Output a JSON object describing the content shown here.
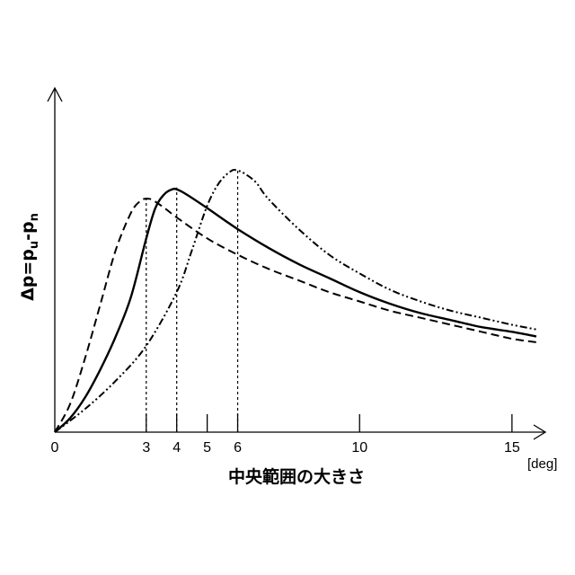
{
  "chart_data": {
    "type": "line",
    "xlabel": "中央範囲の大きさ",
    "ylabel": "Δp=p_u-p_n",
    "ylabel_parts": {
      "main": "Δp=p",
      "sub1": "u",
      "dash": "-p",
      "sub2": "n"
    },
    "x_unit": "[deg]",
    "xlim": [
      0,
      15.8
    ],
    "ylim": [
      0,
      1.12
    ],
    "x_ticks": [
      0,
      3,
      4,
      5,
      6,
      10,
      15
    ],
    "x_tick_labels": [
      "0",
      "3",
      "4",
      "5",
      "6",
      "10",
      "15"
    ],
    "peak_markers": [
      3,
      4,
      6
    ],
    "series": [
      {
        "style": "dashed",
        "x": [
          0,
          0.5,
          1,
          1.5,
          2,
          2.5,
          2.8,
          3,
          3.2,
          3.6,
          4,
          5,
          6,
          7,
          8,
          9,
          10,
          11,
          12,
          13,
          14,
          15,
          15.8
        ],
        "y": [
          0,
          0.12,
          0.32,
          0.55,
          0.78,
          0.94,
          0.99,
          1.0,
          0.995,
          0.96,
          0.92,
          0.83,
          0.76,
          0.7,
          0.65,
          0.6,
          0.56,
          0.52,
          0.49,
          0.46,
          0.43,
          0.4,
          0.385
        ]
      },
      {
        "style": "solid",
        "x": [
          0,
          0.5,
          1,
          1.5,
          2,
          2.5,
          3,
          3.3,
          3.6,
          3.85,
          4,
          4.3,
          5,
          6,
          7,
          8,
          9,
          10,
          11,
          12,
          13,
          14,
          15,
          15.8
        ],
        "y": [
          0,
          0.06,
          0.15,
          0.27,
          0.41,
          0.58,
          0.83,
          0.96,
          1.02,
          1.04,
          1.04,
          1.02,
          0.96,
          0.87,
          0.79,
          0.72,
          0.66,
          0.6,
          0.55,
          0.51,
          0.48,
          0.45,
          0.43,
          0.41
        ]
      },
      {
        "style": "dash-dot-dot",
        "x": [
          0,
          1,
          2,
          3,
          4,
          4.5,
          5,
          5.4,
          5.8,
          6,
          6.2,
          6.6,
          7,
          8,
          9,
          10,
          11,
          12,
          13,
          14,
          15,
          15.8
        ],
        "y": [
          0,
          0.1,
          0.22,
          0.37,
          0.6,
          0.78,
          0.97,
          1.07,
          1.12,
          1.12,
          1.11,
          1.07,
          1.0,
          0.87,
          0.76,
          0.68,
          0.61,
          0.56,
          0.52,
          0.49,
          0.46,
          0.44
        ]
      }
    ]
  }
}
